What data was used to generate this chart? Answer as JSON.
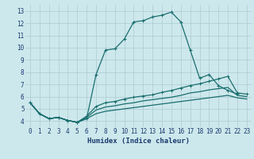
{
  "xlabel": "Humidex (Indice chaleur)",
  "background_color": "#cde8ec",
  "grid_color": "#b0cfd6",
  "line_color": "#1a6e6e",
  "xlim": [
    -0.5,
    23.5
  ],
  "ylim": [
    3.5,
    13.5
  ],
  "xticks": [
    0,
    1,
    2,
    3,
    4,
    5,
    6,
    7,
    8,
    9,
    10,
    11,
    12,
    13,
    14,
    15,
    16,
    17,
    18,
    19,
    20,
    21,
    22,
    23
  ],
  "yticks": [
    4,
    5,
    6,
    7,
    8,
    9,
    10,
    11,
    12,
    13
  ],
  "line1_x": [
    0,
    1,
    2,
    3,
    4,
    5,
    6,
    7,
    8,
    9,
    10,
    11,
    12,
    13,
    14,
    15,
    16,
    17,
    18,
    19,
    20,
    21,
    22
  ],
  "line1_y": [
    5.5,
    4.6,
    4.2,
    4.3,
    4.05,
    3.9,
    4.2,
    7.8,
    9.8,
    9.9,
    10.7,
    12.1,
    12.2,
    12.5,
    12.65,
    12.9,
    12.1,
    9.8,
    7.5,
    7.8,
    6.9,
    6.5,
    6.2
  ],
  "line2_x": [
    0,
    1,
    2,
    3,
    4,
    5,
    6,
    7,
    8,
    9,
    10,
    11,
    12,
    13,
    14,
    15,
    16,
    17,
    18,
    19,
    20,
    21,
    22,
    23
  ],
  "line2_y": [
    5.5,
    4.6,
    4.2,
    4.3,
    4.05,
    3.9,
    4.4,
    5.2,
    5.5,
    5.6,
    5.8,
    5.95,
    6.05,
    6.15,
    6.35,
    6.5,
    6.7,
    6.9,
    7.05,
    7.25,
    7.45,
    7.65,
    6.3,
    6.2
  ],
  "line3_x": [
    0,
    1,
    2,
    3,
    4,
    5,
    6,
    7,
    8,
    9,
    10,
    11,
    12,
    13,
    14,
    15,
    16,
    17,
    18,
    19,
    20,
    21,
    22,
    23
  ],
  "line3_y": [
    5.5,
    4.6,
    4.2,
    4.3,
    4.05,
    3.9,
    4.3,
    4.9,
    5.15,
    5.25,
    5.4,
    5.5,
    5.65,
    5.75,
    5.85,
    5.95,
    6.1,
    6.3,
    6.4,
    6.55,
    6.65,
    6.75,
    6.1,
    6.0
  ],
  "line4_x": [
    0,
    1,
    2,
    3,
    4,
    5,
    6,
    7,
    8,
    9,
    10,
    11,
    12,
    13,
    14,
    15,
    16,
    17,
    18,
    19,
    20,
    21,
    22,
    23
  ],
  "line4_y": [
    5.5,
    4.6,
    4.2,
    4.3,
    4.05,
    3.9,
    4.2,
    4.6,
    4.8,
    4.9,
    5.0,
    5.1,
    5.2,
    5.3,
    5.4,
    5.5,
    5.6,
    5.7,
    5.8,
    5.9,
    6.0,
    6.1,
    5.9,
    5.8
  ]
}
